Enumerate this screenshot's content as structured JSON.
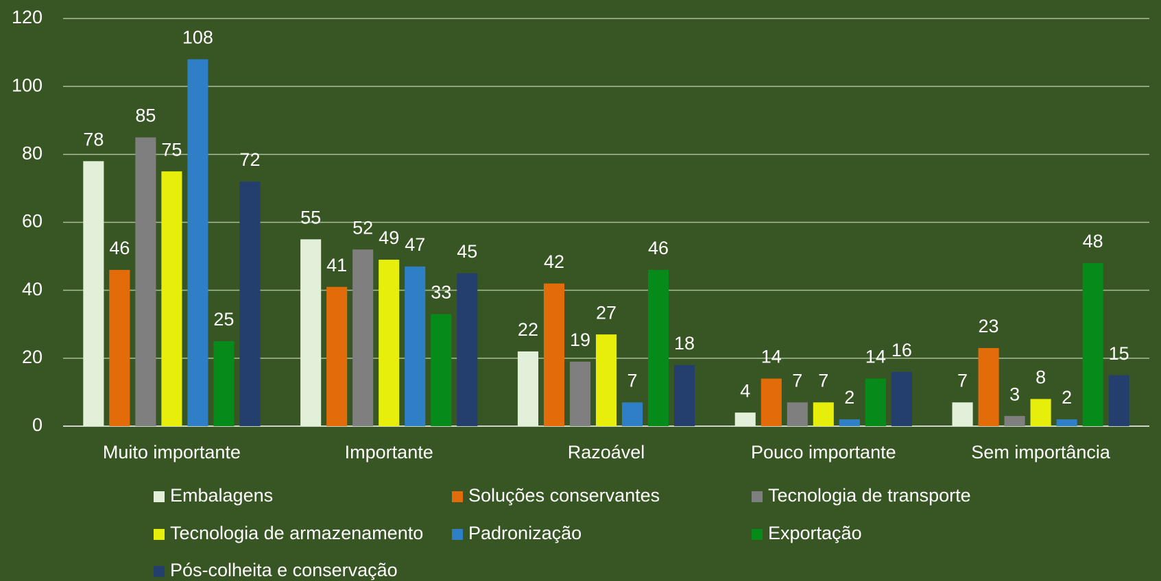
{
  "chart_data": {
    "type": "bar",
    "categories": [
      "Muito importante",
      "Importante",
      "Razoável",
      "Pouco importante",
      "Sem importância"
    ],
    "series": [
      {
        "name": "Embalagens",
        "color": "#e2efd9",
        "values": [
          78,
          55,
          22,
          4,
          7
        ]
      },
      {
        "name": "Soluções conservantes",
        "color": "#e36c0a",
        "values": [
          46,
          41,
          42,
          14,
          23
        ]
      },
      {
        "name": "Tecnologia de transporte",
        "color": "#7f7f7f",
        "values": [
          85,
          52,
          19,
          7,
          3
        ]
      },
      {
        "name": "Tecnologia de armazenamento",
        "color": "#e6ee0a",
        "values": [
          75,
          49,
          27,
          7,
          8
        ]
      },
      {
        "name": "Padronização",
        "color": "#2f7fc6",
        "values": [
          108,
          47,
          7,
          2,
          2
        ]
      },
      {
        "name": "Exportação",
        "color": "#068a1a",
        "values": [
          25,
          33,
          46,
          14,
          48
        ]
      },
      {
        "name": "Pós-colheita e conservação",
        "color": "#243f6d",
        "values": [
          72,
          45,
          18,
          16,
          15
        ]
      }
    ],
    "ylim": [
      0,
      120
    ],
    "yticks": [
      0,
      20,
      40,
      60,
      80,
      100,
      120
    ],
    "grid": true,
    "legend": "bottom"
  }
}
